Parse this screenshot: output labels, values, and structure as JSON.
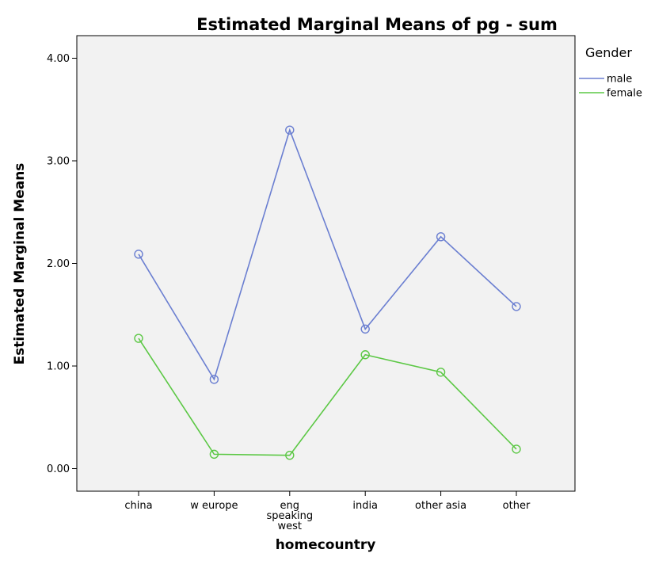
{
  "chart_data": {
    "type": "line",
    "title": "Estimated Marginal Means of pg - sum",
    "xlabel": "homecountry",
    "ylabel": "Estimated Marginal Means",
    "categories": [
      "china",
      "w europe",
      "eng speaking west",
      "india",
      "other asia",
      "other"
    ],
    "category_lines": [
      [
        "china"
      ],
      [
        "w europe"
      ],
      [
        "eng",
        "speaking",
        "west"
      ],
      [
        "india"
      ],
      [
        "other asia"
      ],
      [
        "other"
      ]
    ],
    "ylim": [
      -0.22,
      4.22
    ],
    "yticks": [
      0,
      1,
      2,
      3,
      4
    ],
    "ytick_labels": [
      "0.00",
      "1.00",
      "2.00",
      "3.00",
      "4.00"
    ],
    "grid": false,
    "legend": {
      "title": "Gender",
      "position": "right"
    },
    "series": [
      {
        "name": "male",
        "color": "#6b7fd1",
        "values": [
          2.09,
          0.87,
          3.3,
          1.36,
          2.26,
          1.58
        ]
      },
      {
        "name": "female",
        "color": "#5cc845",
        "values": [
          1.27,
          0.14,
          0.13,
          1.11,
          0.94,
          0.19
        ]
      }
    ]
  }
}
